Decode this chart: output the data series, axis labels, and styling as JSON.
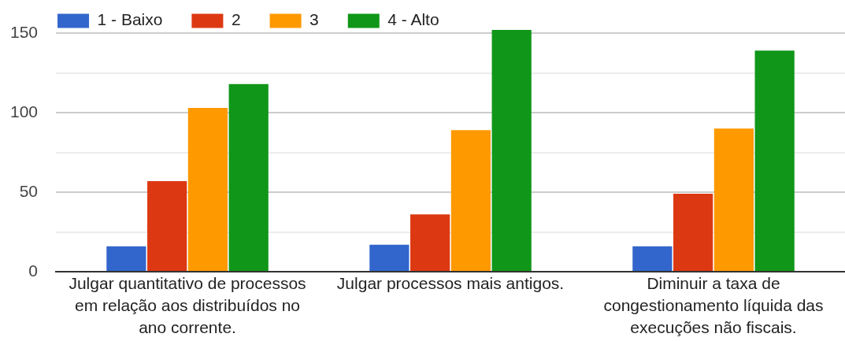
{
  "chart_data": {
    "type": "bar",
    "categories": [
      "Julgar quantitativo de processos em relação aos distribuídos no ano corrente.",
      "Julgar processos mais antigos.",
      "Diminuir a taxa de congestionamento líquida das execuções não fiscais."
    ],
    "series": [
      {
        "name": "1 - Baixo",
        "color": "#3366cc",
        "values": [
          16,
          17,
          16
        ]
      },
      {
        "name": "2",
        "color": "#dc3912",
        "values": [
          57,
          36,
          49
        ]
      },
      {
        "name": "3",
        "color": "#ff9900",
        "values": [
          103,
          89,
          90
        ]
      },
      {
        "name": "4 - Alto",
        "color": "#109618",
        "values": [
          118,
          152,
          139
        ]
      }
    ],
    "ylim": [
      0,
      152
    ],
    "yticks": [
      0,
      {
        "value": 25,
        "label": null
      },
      50,
      {
        "value": 75,
        "label": null
      },
      100,
      {
        "value": 125,
        "label": null
      },
      150
    ],
    "grid": "y",
    "legend": "top left"
  }
}
